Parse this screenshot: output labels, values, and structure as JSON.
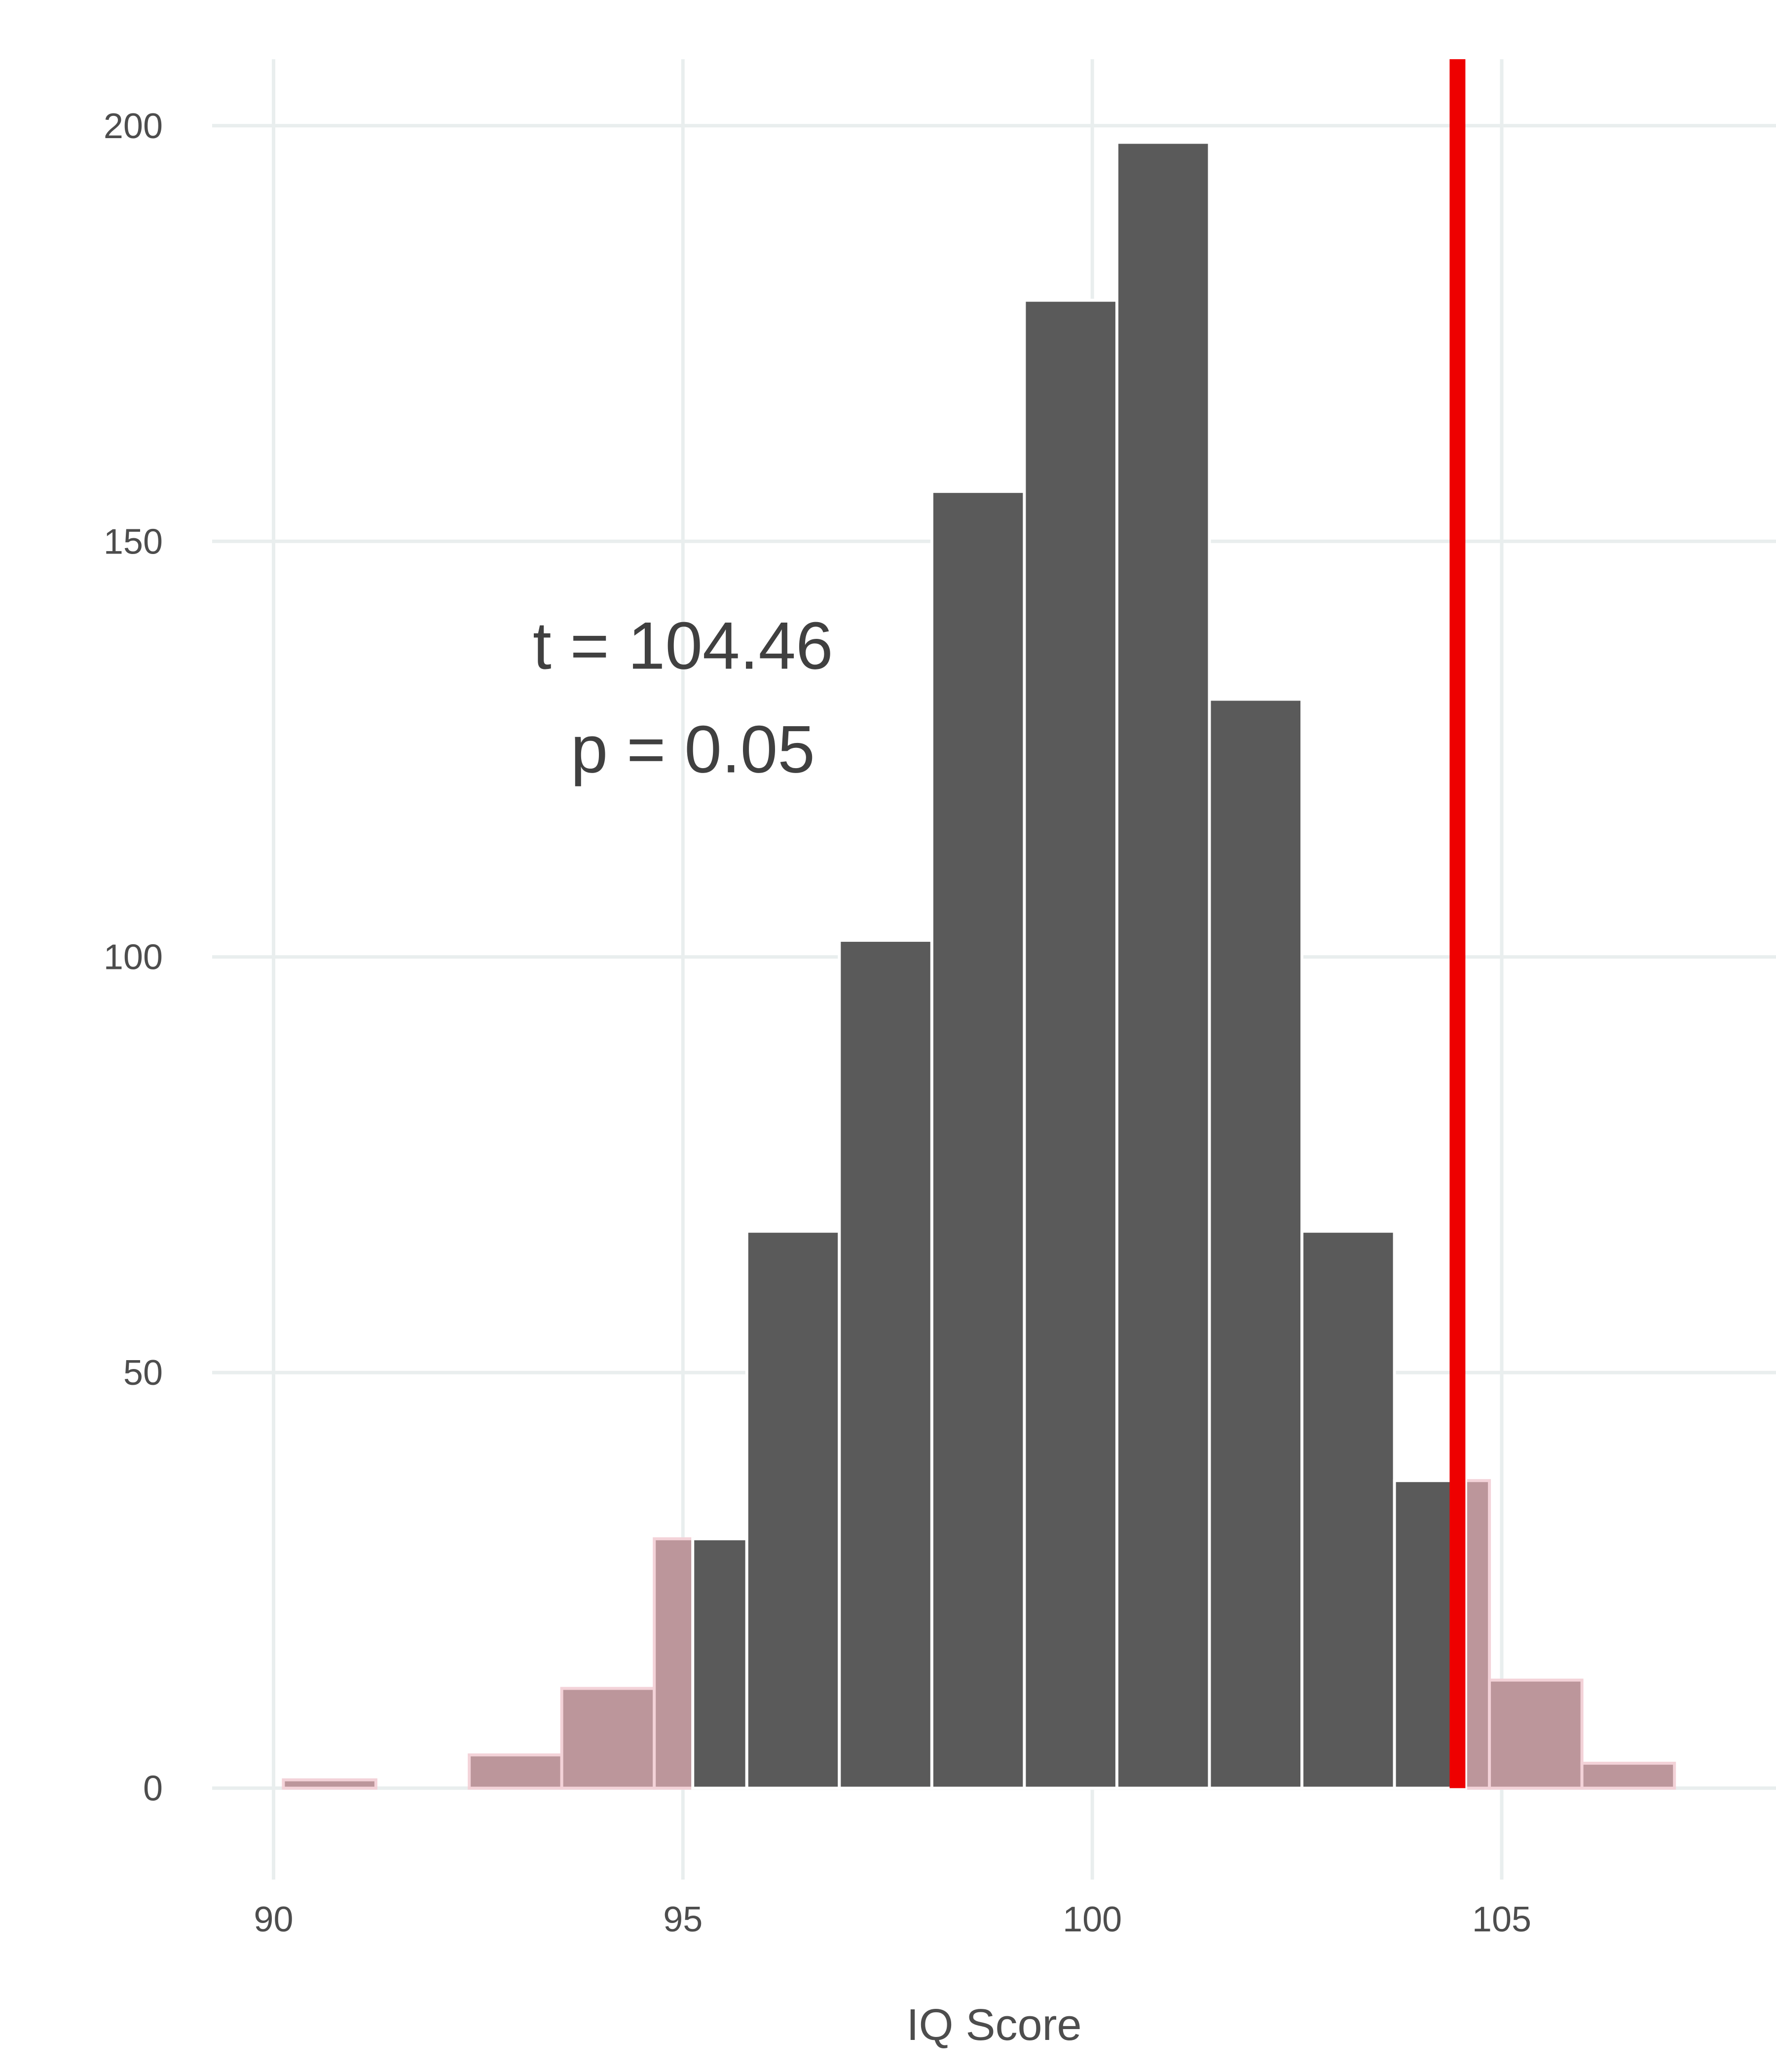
{
  "chart_data": {
    "type": "bar",
    "title": "",
    "xlabel": "IQ Score",
    "ylabel": "",
    "xlim": [
      89.25,
      108.35
    ],
    "ylim": [
      -11,
      208
    ],
    "x_ticks": [
      90,
      95,
      100,
      105
    ],
    "y_ticks": [
      0,
      50,
      100,
      150,
      200
    ],
    "grid": true,
    "legend": "none",
    "bin_width": 1.13,
    "series": [
      {
        "role": "tail",
        "color": "#bc969b",
        "bins": [
          {
            "x0": 90.12,
            "x1": 91.25,
            "y": 1
          },
          {
            "x0": 92.39,
            "x1": 93.52,
            "y": 4
          },
          {
            "x0": 93.52,
            "x1": 94.65,
            "y": 12
          },
          {
            "x0": 94.65,
            "x1": 95.12,
            "y": 30
          },
          {
            "x0": 104.56,
            "x1": 104.85,
            "y": 37
          },
          {
            "x0": 104.85,
            "x1": 105.98,
            "y": 13
          },
          {
            "x0": 105.98,
            "x1": 107.11,
            "y": 3
          }
        ]
      },
      {
        "role": "body",
        "color": "#5a5a5a",
        "bins": [
          {
            "x0": 95.12,
            "x1": 95.78,
            "y": 30
          },
          {
            "x0": 95.78,
            "x1": 96.91,
            "y": 67
          },
          {
            "x0": 96.91,
            "x1": 98.04,
            "y": 102
          },
          {
            "x0": 98.04,
            "x1": 99.17,
            "y": 156
          },
          {
            "x0": 99.17,
            "x1": 100.3,
            "y": 179
          },
          {
            "x0": 100.3,
            "x1": 101.43,
            "y": 198
          },
          {
            "x0": 101.43,
            "x1": 102.56,
            "y": 131
          },
          {
            "x0": 102.56,
            "x1": 103.69,
            "y": 67
          },
          {
            "x0": 103.69,
            "x1": 104.56,
            "y": 37
          }
        ]
      }
    ],
    "reference_line": {
      "x": 104.46,
      "color": "#ee0000"
    },
    "annotation": [
      "t = 104.46",
      "p = 0.05"
    ],
    "annotation_anchor": {
      "x": 95.0,
      "y": 132
    }
  }
}
